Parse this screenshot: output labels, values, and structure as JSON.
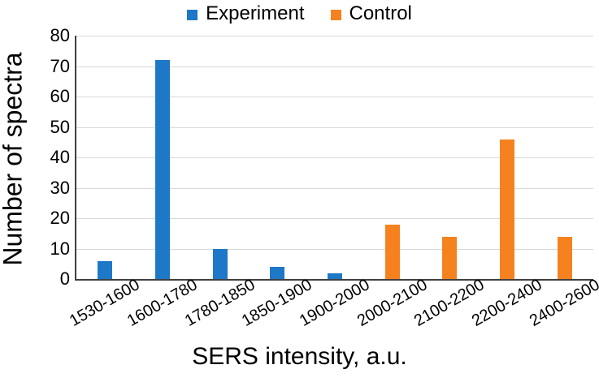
{
  "chart_data": {
    "type": "bar",
    "title": "",
    "xlabel": "SERS intensity, a.u.",
    "ylabel": "Number of spectra",
    "categories": [
      "1530-1600",
      "1600-1780",
      "1780-1850",
      "1850-1900",
      "1900-2000",
      "2000-2100",
      "2100-2200",
      "2200-2400",
      "2400-2600"
    ],
    "series": [
      {
        "name": "Experiment",
        "color": "#1E78C8",
        "values": [
          6,
          72,
          10,
          4,
          2,
          null,
          null,
          null,
          null
        ]
      },
      {
        "name": "Control",
        "color": "#F5821F",
        "values": [
          null,
          null,
          null,
          null,
          null,
          18,
          14,
          46,
          14
        ]
      }
    ],
    "ylim": [
      0,
      80
    ],
    "yticks": [
      0,
      10,
      20,
      30,
      40,
      50,
      60,
      70,
      80
    ],
    "grid": "horizontal",
    "legend_position": "top-center"
  },
  "colors": {
    "background": "#FFFFFF",
    "gridline": "#D9D9D9",
    "axis": "#404040",
    "text": "#000000"
  }
}
